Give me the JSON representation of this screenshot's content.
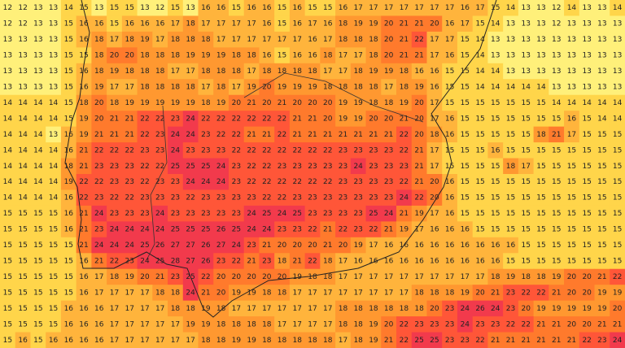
{
  "grid": {
    "rows": [
      [
        12,
        12,
        13,
        13,
        14,
        15,
        13,
        15,
        15,
        13,
        12,
        15,
        13,
        16,
        16,
        15,
        16,
        16,
        15,
        16,
        15,
        15,
        16,
        17,
        17,
        17,
        17,
        17,
        17,
        17,
        16,
        17,
        15,
        14,
        13,
        13,
        12,
        14,
        13,
        13,
        14
      ],
      [
        12,
        12,
        13,
        13,
        15,
        16,
        16,
        15,
        16,
        16,
        16,
        17,
        18,
        17,
        17,
        17,
        17,
        16,
        15,
        16,
        17,
        16,
        18,
        19,
        19,
        20,
        21,
        21,
        20,
        16,
        17,
        15,
        14,
        13,
        13,
        13,
        12,
        13,
        13,
        13,
        13
      ],
      [
        13,
        13,
        13,
        13,
        15,
        16,
        18,
        17,
        18,
        19,
        17,
        18,
        18,
        18,
        17,
        17,
        17,
        17,
        17,
        17,
        16,
        17,
        18,
        18,
        18,
        20,
        21,
        22,
        17,
        17,
        15,
        14,
        13,
        13,
        13,
        13,
        13,
        13,
        13,
        13,
        13
      ],
      [
        13,
        13,
        13,
        13,
        15,
        15,
        18,
        20,
        20,
        18,
        18,
        18,
        19,
        19,
        19,
        18,
        18,
        16,
        15,
        16,
        16,
        18,
        17,
        17,
        18,
        20,
        21,
        21,
        17,
        16,
        15,
        14,
        13,
        13,
        13,
        13,
        13,
        13,
        13,
        13,
        13
      ],
      [
        13,
        13,
        13,
        13,
        15,
        16,
        18,
        19,
        18,
        18,
        18,
        17,
        17,
        18,
        18,
        18,
        17,
        18,
        18,
        18,
        18,
        17,
        17,
        18,
        19,
        19,
        18,
        16,
        16,
        15,
        15,
        14,
        14,
        13,
        13,
        13,
        13,
        13,
        13,
        13,
        13
      ],
      [
        13,
        13,
        13,
        13,
        15,
        16,
        19,
        17,
        17,
        18,
        18,
        18,
        18,
        17,
        18,
        17,
        19,
        20,
        19,
        19,
        19,
        18,
        18,
        18,
        18,
        17,
        18,
        19,
        16,
        15,
        15,
        14,
        14,
        14,
        14,
        14,
        13,
        13,
        13,
        13,
        13
      ],
      [
        14,
        14,
        14,
        14,
        15,
        18,
        20,
        18,
        19,
        19,
        19,
        19,
        19,
        18,
        19,
        20,
        21,
        20,
        21,
        20,
        20,
        20,
        19,
        19,
        18,
        18,
        19,
        20,
        17,
        15,
        15,
        15,
        15,
        15,
        15,
        15,
        14,
        14,
        14,
        14,
        14
      ],
      [
        14,
        14,
        14,
        14,
        15,
        19,
        20,
        21,
        21,
        22,
        22,
        23,
        24,
        22,
        22,
        22,
        22,
        22,
        22,
        21,
        21,
        20,
        19,
        19,
        20,
        20,
        21,
        20,
        17,
        16,
        15,
        15,
        15,
        15,
        15,
        15,
        15,
        16,
        15,
        14,
        14
      ],
      [
        14,
        14,
        14,
        13,
        16,
        19,
        21,
        21,
        21,
        22,
        23,
        24,
        24,
        23,
        22,
        22,
        21,
        21,
        22,
        21,
        21,
        21,
        21,
        21,
        21,
        21,
        22,
        20,
        18,
        16,
        15,
        15,
        15,
        15,
        15,
        18,
        21,
        17,
        15,
        15,
        15
      ],
      [
        14,
        14,
        14,
        14,
        16,
        21,
        22,
        22,
        22,
        23,
        23,
        24,
        23,
        23,
        23,
        22,
        22,
        22,
        22,
        22,
        22,
        22,
        23,
        23,
        23,
        23,
        22,
        21,
        17,
        15,
        15,
        15,
        16,
        15,
        15,
        15,
        15,
        15,
        15,
        15,
        15
      ],
      [
        14,
        14,
        14,
        14,
        18,
        21,
        23,
        23,
        23,
        22,
        22,
        25,
        25,
        25,
        24,
        23,
        22,
        22,
        23,
        23,
        23,
        23,
        23,
        24,
        23,
        23,
        23,
        21,
        17,
        15,
        15,
        15,
        15,
        18,
        17,
        15,
        15,
        15,
        15,
        15,
        15
      ],
      [
        14,
        14,
        14,
        14,
        19,
        22,
        22,
        23,
        23,
        22,
        23,
        23,
        24,
        24,
        24,
        23,
        22,
        22,
        22,
        22,
        22,
        22,
        23,
        23,
        23,
        23,
        22,
        21,
        20,
        16,
        15,
        15,
        15,
        15,
        15,
        15,
        15,
        15,
        15,
        15,
        15
      ],
      [
        14,
        14,
        14,
        14,
        16,
        22,
        23,
        22,
        22,
        23,
        23,
        23,
        22,
        23,
        23,
        23,
        23,
        22,
        22,
        23,
        23,
        23,
        23,
        23,
        23,
        23,
        24,
        22,
        20,
        16,
        15,
        15,
        15,
        15,
        15,
        15,
        15,
        15,
        15,
        15,
        15
      ],
      [
        15,
        15,
        15,
        15,
        16,
        21,
        24,
        23,
        23,
        23,
        24,
        23,
        23,
        23,
        23,
        23,
        24,
        25,
        24,
        25,
        23,
        23,
        23,
        23,
        25,
        24,
        21,
        19,
        17,
        16,
        15,
        15,
        15,
        15,
        15,
        15,
        15,
        15,
        15,
        15,
        15
      ],
      [
        15,
        15,
        15,
        15,
        16,
        21,
        23,
        24,
        24,
        24,
        24,
        25,
        25,
        25,
        26,
        25,
        24,
        24,
        23,
        23,
        22,
        21,
        22,
        23,
        22,
        21,
        19,
        17,
        16,
        16,
        16,
        15,
        15,
        15,
        15,
        15,
        15,
        15,
        15,
        15,
        15
      ],
      [
        15,
        15,
        15,
        15,
        15,
        21,
        24,
        24,
        24,
        25,
        26,
        27,
        27,
        26,
        27,
        24,
        23,
        21,
        20,
        20,
        20,
        21,
        20,
        19,
        17,
        16,
        16,
        16,
        16,
        16,
        16,
        16,
        16,
        16,
        15,
        15,
        15,
        15,
        15,
        15,
        15
      ],
      [
        15,
        15,
        15,
        15,
        15,
        16,
        21,
        22,
        23,
        24,
        25,
        28,
        27,
        26,
        23,
        22,
        21,
        23,
        18,
        21,
        22,
        18,
        17,
        16,
        16,
        16,
        16,
        16,
        16,
        16,
        16,
        16,
        16,
        15,
        15,
        15,
        15,
        15,
        15,
        15,
        15
      ],
      [
        15,
        15,
        15,
        15,
        15,
        16,
        17,
        18,
        19,
        20,
        21,
        23,
        25,
        22,
        20,
        20,
        20,
        20,
        20,
        19,
        18,
        18,
        17,
        17,
        17,
        17,
        17,
        17,
        17,
        17,
        17,
        17,
        18,
        19,
        18,
        18,
        19,
        20,
        20,
        21,
        22
      ],
      [
        15,
        15,
        15,
        15,
        15,
        16,
        17,
        17,
        17,
        17,
        18,
        18,
        24,
        21,
        20,
        19,
        19,
        18,
        18,
        17,
        17,
        17,
        17,
        17,
        17,
        17,
        17,
        18,
        18,
        18,
        19,
        20,
        21,
        23,
        22,
        22,
        21,
        20,
        20,
        19,
        19
      ],
      [
        15,
        15,
        15,
        15,
        16,
        16,
        16,
        17,
        17,
        17,
        17,
        18,
        18,
        19,
        18,
        17,
        17,
        17,
        17,
        17,
        17,
        17,
        18,
        18,
        18,
        18,
        18,
        18,
        20,
        23,
        24,
        26,
        24,
        23,
        20,
        19,
        19,
        19,
        19,
        19,
        20
      ],
      [
        15,
        15,
        15,
        15,
        16,
        16,
        16,
        17,
        17,
        17,
        17,
        17,
        19,
        19,
        18,
        18,
        18,
        18,
        17,
        17,
        17,
        17,
        18,
        18,
        19,
        20,
        22,
        23,
        23,
        23,
        24,
        23,
        23,
        22,
        22,
        21,
        21,
        20,
        20,
        21,
        21
      ],
      [
        15,
        16,
        15,
        16,
        16,
        16,
        16,
        17,
        17,
        17,
        17,
        17,
        17,
        18,
        18,
        19,
        19,
        18,
        18,
        18,
        18,
        18,
        17,
        18,
        19,
        21,
        22,
        25,
        25,
        23,
        23,
        22,
        21,
        21,
        21,
        21,
        21,
        21,
        22,
        23,
        24
      ]
    ]
  }
}
